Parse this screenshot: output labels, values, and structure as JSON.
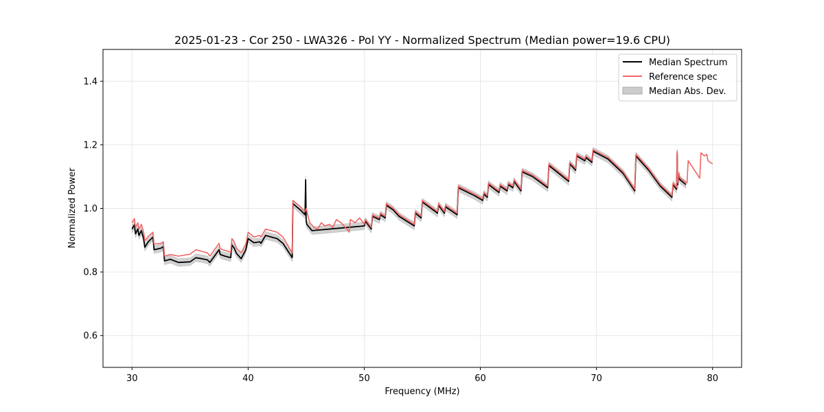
{
  "chart_data": {
    "type": "line",
    "title": "2025-01-23 - Cor 250 - LWA326 - Pol YY - Normalized Spectrum (Median power=19.6 CPU)",
    "xlabel": "Frequency (MHz)",
    "ylabel": "Normalized Power",
    "xlim": [
      27.5,
      82.5
    ],
    "ylim": [
      0.5,
      1.5
    ],
    "xticks": [
      30,
      40,
      50,
      60,
      70,
      80
    ],
    "xtick_labels": [
      "30",
      "40",
      "50",
      "60",
      "70",
      "80"
    ],
    "yticks": [
      0.6,
      0.8,
      1.0,
      1.2,
      1.4
    ],
    "ytick_labels": [
      "0.6",
      "0.8",
      "1.0",
      "1.2",
      "1.4"
    ],
    "grid": true,
    "legend_position": "top-right",
    "legend": [
      "Median Spectrum",
      "Reference spec",
      "Median Abs. Dev."
    ],
    "series": [
      {
        "name": "Median Spectrum",
        "color": "#000000",
        "x": [
          30.0,
          30.2,
          30.3,
          30.5,
          30.6,
          30.8,
          31.0,
          31.1,
          31.4,
          31.8,
          31.9,
          32.5,
          32.7,
          32.8,
          33.3,
          34.0,
          35.0,
          35.5,
          36.0,
          36.5,
          36.7,
          37.5,
          37.6,
          38.0,
          38.5,
          38.6,
          38.8,
          39.0,
          39.4,
          39.8,
          40.0,
          40.5,
          41.0,
          41.1,
          41.5,
          42.0,
          42.5,
          43.0,
          43.8,
          43.85,
          44.5,
          44.9,
          44.95,
          45.0,
          45.05,
          45.5,
          50.0,
          50.1,
          50.6,
          50.7,
          51.3,
          51.4,
          51.8,
          51.9,
          52.5,
          53.0,
          54.3,
          54.4,
          54.9,
          55.0,
          56.3,
          56.4,
          56.9,
          57.0,
          58.0,
          58.1,
          59.5,
          60.2,
          60.3,
          60.6,
          60.7,
          61.6,
          61.7,
          62.3,
          62.4,
          62.8,
          62.9,
          63.5,
          63.6,
          64.5,
          65.8,
          65.9,
          67.6,
          67.7,
          68.2,
          68.3,
          69.0,
          69.1,
          69.6,
          69.7,
          71.0,
          72.3,
          73.3,
          73.4,
          74.5,
          75.5,
          76.5,
          76.6,
          76.9,
          76.95,
          77.0,
          77.1,
          77.2,
          77.7
        ],
        "values": [
          0.935,
          0.948,
          0.92,
          0.935,
          0.915,
          0.93,
          0.905,
          0.878,
          0.895,
          0.91,
          0.87,
          0.875,
          0.88,
          0.835,
          0.84,
          0.83,
          0.832,
          0.845,
          0.842,
          0.838,
          0.83,
          0.87,
          0.855,
          0.85,
          0.845,
          0.885,
          0.875,
          0.858,
          0.842,
          0.87,
          0.905,
          0.892,
          0.895,
          0.89,
          0.915,
          0.91,
          0.905,
          0.89,
          0.845,
          1.015,
          0.995,
          0.98,
          1.09,
          0.96,
          0.95,
          0.93,
          0.945,
          0.96,
          0.935,
          0.975,
          0.965,
          0.98,
          0.97,
          1.01,
          0.995,
          0.975,
          0.945,
          0.985,
          0.97,
          1.02,
          0.985,
          1.01,
          0.985,
          1.005,
          0.98,
          1.065,
          1.04,
          1.025,
          1.045,
          1.035,
          1.075,
          1.05,
          1.07,
          1.055,
          1.075,
          1.065,
          1.085,
          1.055,
          1.115,
          1.1,
          1.065,
          1.135,
          1.085,
          1.14,
          1.12,
          1.165,
          1.15,
          1.16,
          1.145,
          1.18,
          1.155,
          1.11,
          1.055,
          1.165,
          1.12,
          1.07,
          1.035,
          1.075,
          1.06,
          1.175,
          1.075,
          1.105,
          1.09,
          1.075
        ]
      },
      {
        "name": "Reference spec",
        "color": "#f06464",
        "x": [
          30.0,
          30.2,
          30.3,
          30.5,
          30.6,
          30.8,
          31.0,
          31.1,
          31.4,
          31.8,
          31.9,
          32.5,
          32.7,
          32.8,
          33.3,
          34.0,
          35.0,
          35.5,
          36.0,
          36.5,
          36.7,
          37.5,
          37.6,
          38.0,
          38.5,
          38.6,
          38.8,
          39.0,
          39.4,
          39.8,
          40.0,
          40.5,
          41.0,
          41.1,
          41.5,
          42.0,
          42.5,
          43.0,
          43.8,
          43.85,
          44.5,
          44.9,
          45.0,
          45.3,
          45.7,
          46.0,
          46.3,
          46.6,
          47.0,
          47.3,
          47.6,
          48.0,
          48.5,
          48.7,
          48.8,
          49.2,
          49.6,
          50.0,
          50.1,
          50.6,
          50.7,
          51.3,
          51.4,
          51.8,
          51.9,
          52.5,
          53.0,
          54.3,
          54.4,
          54.9,
          55.0,
          56.3,
          56.4,
          56.9,
          57.0,
          58.0,
          58.1,
          59.5,
          60.2,
          60.3,
          60.6,
          60.7,
          61.6,
          61.7,
          62.3,
          62.4,
          62.8,
          62.9,
          63.5,
          63.6,
          64.5,
          65.8,
          65.9,
          67.6,
          67.7,
          68.2,
          68.3,
          69.0,
          69.1,
          69.6,
          69.7,
          71.0,
          72.3,
          73.3,
          73.4,
          74.5,
          75.5,
          76.5,
          76.6,
          76.9,
          76.95,
          77.0,
          77.1,
          77.2,
          77.8,
          77.9,
          78.9,
          79.0,
          79.3,
          79.5,
          79.6,
          80.0
        ],
        "values": [
          0.955,
          0.968,
          0.94,
          0.955,
          0.935,
          0.95,
          0.925,
          0.898,
          0.912,
          0.925,
          0.888,
          0.89,
          0.895,
          0.85,
          0.855,
          0.85,
          0.856,
          0.87,
          0.865,
          0.86,
          0.85,
          0.89,
          0.873,
          0.868,
          0.862,
          0.905,
          0.895,
          0.875,
          0.86,
          0.888,
          0.925,
          0.91,
          0.915,
          0.91,
          0.935,
          0.93,
          0.925,
          0.91,
          0.86,
          1.025,
          1.005,
          0.99,
          1.0,
          0.955,
          0.94,
          0.935,
          0.955,
          0.945,
          0.95,
          0.94,
          0.965,
          0.955,
          0.935,
          0.925,
          0.965,
          0.955,
          0.97,
          0.95,
          0.965,
          0.94,
          0.98,
          0.97,
          0.985,
          0.975,
          1.015,
          1.0,
          0.98,
          0.95,
          0.99,
          0.975,
          1.025,
          0.99,
          1.015,
          0.99,
          1.01,
          0.985,
          1.07,
          1.045,
          1.03,
          1.05,
          1.04,
          1.08,
          1.055,
          1.075,
          1.06,
          1.08,
          1.07,
          1.09,
          1.06,
          1.12,
          1.105,
          1.07,
          1.14,
          1.09,
          1.145,
          1.125,
          1.17,
          1.155,
          1.165,
          1.15,
          1.185,
          1.16,
          1.115,
          1.06,
          1.17,
          1.125,
          1.075,
          1.04,
          1.08,
          1.065,
          1.18,
          1.08,
          1.11,
          1.095,
          1.08,
          1.15,
          1.095,
          1.175,
          1.165,
          1.17,
          1.15,
          1.14
        ]
      },
      {
        "name": "Median Abs. Dev.",
        "type": "band",
        "color": "#cccccc",
        "half_width": 0.012
      }
    ]
  }
}
